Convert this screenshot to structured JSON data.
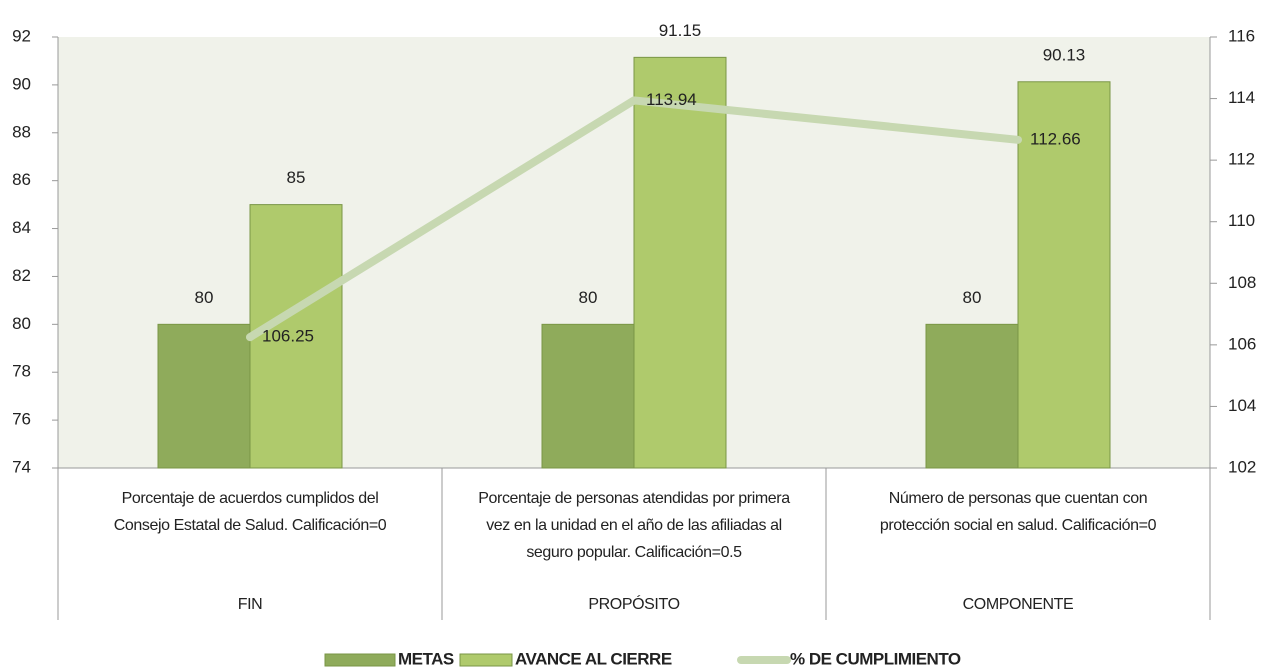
{
  "chart_data": {
    "type": "bar_line",
    "categories": [
      [
        "Porcentaje de acuerdos cumplidos del",
        "Consejo Estatal de Salud. Calificación=0"
      ],
      [
        "Porcentaje de personas atendidas por primera",
        "vez en la unidad en el año de las afiliadas al",
        "seguro popular. Calificación=0.5"
      ],
      [
        "Número de personas que cuentan con",
        "protección social en salud. Calificación=0"
      ]
    ],
    "groups": [
      "FIN",
      "PROPÓSITO",
      "COMPONENTE"
    ],
    "series": [
      {
        "name": "METAS",
        "type": "bar",
        "color": "#8fab5b",
        "values": [
          80,
          80,
          80
        ]
      },
      {
        "name": "AVANCE AL CIERRE",
        "type": "bar",
        "color": "#afca6c",
        "values": [
          85,
          91.15,
          90.13
        ]
      },
      {
        "name": "% DE CUMPLIMIENTO",
        "type": "line",
        "axis": "y2",
        "color": "#c7d8b1",
        "values": [
          106.25,
          113.94,
          112.66
        ]
      }
    ],
    "ylim": [
      74,
      92
    ],
    "yticks": [
      74,
      76,
      78,
      80,
      82,
      84,
      86,
      88,
      90,
      92
    ],
    "y2lim": [
      102,
      116
    ],
    "y2ticks": [
      102,
      104,
      106,
      108,
      110,
      112,
      114,
      116
    ],
    "legend": "bottom"
  }
}
